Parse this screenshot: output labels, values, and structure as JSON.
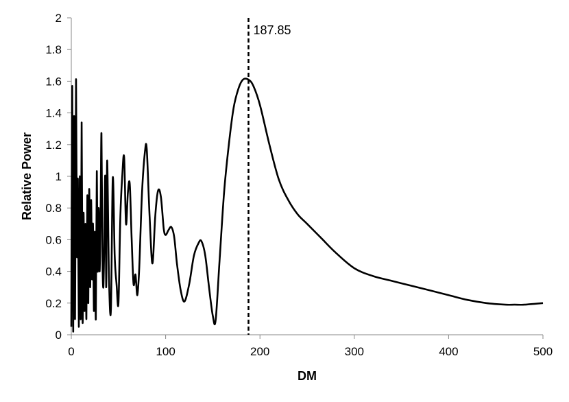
{
  "chart_data": {
    "type": "line",
    "title": "",
    "xlabel": "DM",
    "ylabel": "Relative Power",
    "xlim": [
      0,
      500
    ],
    "ylim": [
      0,
      2
    ],
    "xticks": [
      0,
      100,
      200,
      300,
      400,
      500
    ],
    "yticks": [
      0,
      0.2,
      0.4,
      0.6,
      0.8,
      1,
      1.2,
      1.4,
      1.6,
      1.8,
      2
    ],
    "xtick_labels": [
      "0",
      "100",
      "200",
      "300",
      "400",
      "500"
    ],
    "ytick_labels": [
      "0",
      "0.2",
      "0.4",
      "0.6",
      "0.8",
      "1",
      "1.2",
      "1.4",
      "1.6",
      "1.8",
      "2"
    ],
    "grid": false,
    "legend": "none",
    "line_color": "#000000",
    "series": [
      {
        "x": [
          0,
          1,
          2,
          3,
          4,
          5,
          6,
          7,
          8,
          9,
          10,
          11,
          12,
          13,
          14,
          15,
          16,
          17,
          18,
          19,
          20,
          21,
          22,
          23,
          24,
          25,
          26,
          27,
          28,
          29,
          30,
          31,
          32,
          33,
          34,
          35,
          36,
          37,
          38,
          40,
          42,
          44,
          46,
          48,
          50,
          52,
          54,
          56,
          58,
          60,
          62,
          64,
          66,
          68,
          70,
          72,
          75,
          78,
          80,
          83,
          86,
          89,
          92,
          95,
          98,
          100,
          103,
          106,
          109,
          112,
          116,
          120,
          125,
          130,
          135,
          138,
          142,
          146,
          150,
          153,
          157,
          162,
          167,
          172,
          177,
          182,
          187.85,
          193,
          200,
          210,
          220,
          230,
          240,
          250,
          265,
          280,
          300,
          320,
          340,
          360,
          380,
          400,
          420,
          440,
          460,
          470,
          480,
          500
        ],
        "y": [
          0.05,
          1.57,
          0.02,
          1.38,
          0.1,
          1.61,
          0.5,
          0.98,
          0.05,
          1.0,
          0.1,
          1.34,
          0.08,
          0.77,
          0.15,
          0.7,
          0.1,
          0.88,
          0.2,
          0.92,
          0.3,
          0.85,
          0.35,
          0.7,
          0.15,
          0.65,
          0.1,
          1.03,
          0.4,
          0.8,
          0.4,
          0.75,
          1.27,
          0.5,
          0.3,
          0.6,
          1.0,
          0.3,
          1.1,
          0.35,
          0.16,
          0.99,
          0.5,
          0.32,
          0.2,
          0.75,
          1.0,
          1.12,
          0.7,
          0.9,
          0.95,
          0.6,
          0.32,
          0.38,
          0.25,
          0.42,
          0.9,
          1.15,
          1.17,
          0.75,
          0.45,
          0.75,
          0.91,
          0.87,
          0.67,
          0.63,
          0.66,
          0.68,
          0.62,
          0.45,
          0.28,
          0.21,
          0.32,
          0.5,
          0.58,
          0.59,
          0.5,
          0.3,
          0.12,
          0.09,
          0.45,
          0.9,
          1.2,
          1.43,
          1.55,
          1.61,
          1.61,
          1.57,
          1.45,
          1.2,
          0.98,
          0.85,
          0.76,
          0.7,
          0.61,
          0.52,
          0.42,
          0.37,
          0.34,
          0.31,
          0.28,
          0.25,
          0.22,
          0.2,
          0.19,
          0.19,
          0.19,
          0.2
        ]
      }
    ],
    "annotations": [
      {
        "label": "187.85",
        "x": 187.85,
        "style": "dashed vertical line"
      }
    ]
  }
}
